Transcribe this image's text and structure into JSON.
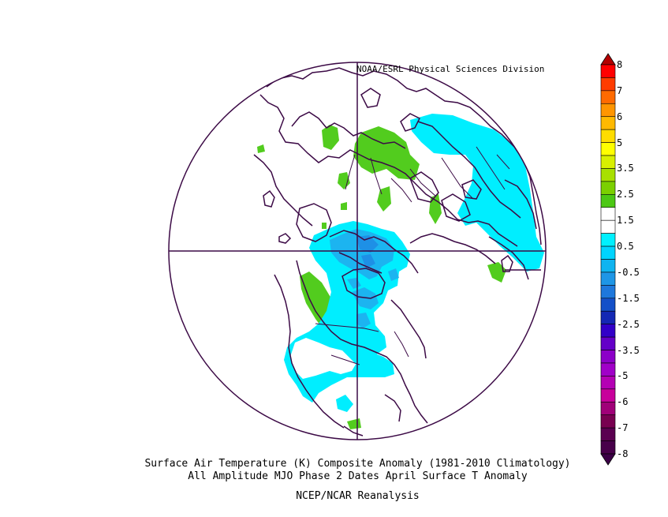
{
  "header": {
    "credit": "NOAA/ESRL Physical Sciences Division"
  },
  "caption": {
    "line1": "Surface Air Temperature (K) Composite Anomaly (1981-2010 Climatology)",
    "line2": "All Amplitude MJO Phase 2 Dates April Surface T Anomaly",
    "line3": "NCEP/NCAR Reanalysis"
  },
  "colorbar": {
    "labels": [
      "8",
      "7",
      "6",
      "5",
      "3.5",
      "2.5",
      "1.5",
      "0.5",
      "-0.5",
      "-1.5",
      "-2.5",
      "-3.5",
      "-5",
      "-6",
      "-7",
      "-8"
    ],
    "colors": [
      "#ff0000",
      "#ff3c00",
      "#ff6a00",
      "#ff9500",
      "#ffb900",
      "#ffdd00",
      "#ffff00",
      "#d8f000",
      "#a8e000",
      "#7bd000",
      "#4cc814",
      "#ffffff",
      "#ffffff",
      "#00f0ff",
      "#00d4ff",
      "#0fb4f0",
      "#1e96e6",
      "#1e78dc",
      "#1450c8",
      "#1428b4",
      "#3200c8",
      "#6400c8",
      "#8c00c8",
      "#a000c8",
      "#b400b4",
      "#c8009b",
      "#a00078",
      "#780050",
      "#5a0050",
      "#48004a"
    ],
    "top_color": "#b40000",
    "bottom_color": "#3c0046"
  },
  "map": {
    "projection": "north-polar-stereographic",
    "boundary_color": "#3c0a46",
    "coastline_color": "#3c0a46",
    "positive_color": "#52cc1e",
    "negative_light_color": "#00eeff",
    "negative_mid_color": "#1cb4f0",
    "negative_dark_color": "#1e90e6"
  }
}
